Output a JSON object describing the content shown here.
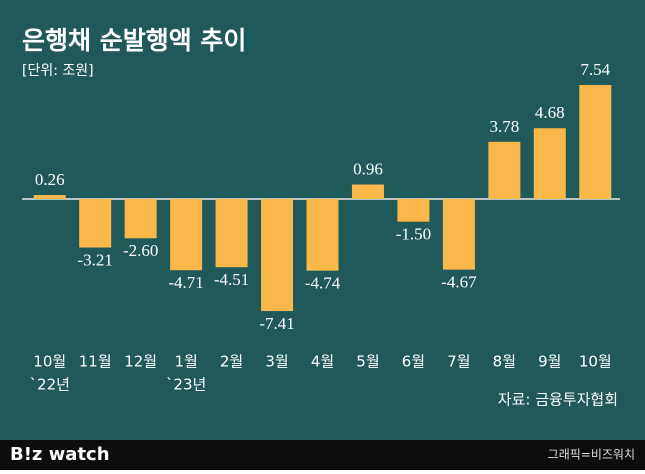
{
  "chart_data": {
    "type": "bar",
    "title": "은행채 순발행액 추이",
    "subtitle": "[단위: 조원]",
    "source": "자료: 금융투자협회",
    "categories": [
      "10월",
      "11월",
      "12월",
      "1월",
      "2월",
      "3월",
      "4월",
      "5월",
      "6월",
      "7월",
      "8월",
      "9월",
      "10월"
    ],
    "sublabels": [
      "`22년",
      null,
      null,
      "`23년",
      null,
      null,
      null,
      null,
      null,
      null,
      null,
      null,
      null
    ],
    "values": [
      0.26,
      -3.21,
      -2.6,
      -4.71,
      -4.51,
      -7.41,
      -4.74,
      0.96,
      -1.5,
      -4.67,
      3.78,
      4.68,
      7.54
    ],
    "value_labels": [
      "0.26",
      "-3.21",
      "-2.60",
      "-4.71",
      "-4.51",
      "-7.41",
      "-4.74",
      "0.96",
      "-1.50",
      "-4.67",
      "3.78",
      "4.68",
      "7.54"
    ],
    "color": "#fbb84a"
  },
  "footer": {
    "logo": "B!z watch",
    "credit": "그래픽=비즈워치"
  }
}
